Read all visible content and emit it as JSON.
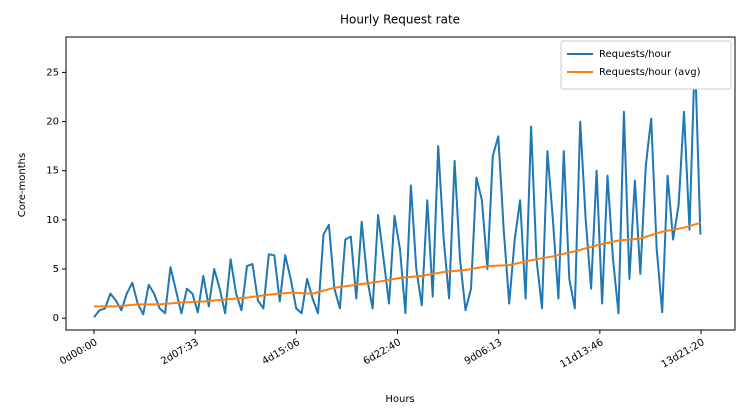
{
  "chart_data": {
    "type": "line",
    "title": "Hourly Request rate",
    "x_label": "Hours",
    "y_label": "Core-months",
    "xlim": [
      -15.4,
      352
    ],
    "ylim": [
      -1.2,
      28.6
    ],
    "xticks": [
      {
        "value": 0,
        "label": "0d00:00"
      },
      {
        "value": 55.56,
        "label": "2d07:33"
      },
      {
        "value": 111.11,
        "label": "4d15:06"
      },
      {
        "value": 166.67,
        "label": "6d22:40"
      },
      {
        "value": 222.22,
        "label": "9d06:13"
      },
      {
        "value": 277.78,
        "label": "11d13:46"
      },
      {
        "value": 333.33,
        "label": "13d21:20"
      }
    ],
    "yticks": [
      0,
      5,
      10,
      15,
      20,
      25
    ],
    "legend": "upper right",
    "series": [
      {
        "name": "Requests/hour",
        "color": "#1f77b4",
        "x": [
          0,
          3,
          6,
          9,
          12,
          15,
          18,
          21,
          24,
          27,
          30,
          33,
          36,
          39,
          42,
          45,
          48,
          51,
          54,
          57,
          60,
          63,
          66,
          69,
          72,
          75,
          78,
          81,
          84,
          87,
          90,
          93,
          96,
          99,
          102,
          105,
          108,
          111,
          114,
          117,
          120,
          123,
          126,
          129,
          132,
          135,
          138,
          141,
          144,
          147,
          150,
          153,
          156,
          159,
          162,
          165,
          168,
          171,
          174,
          177,
          180,
          183,
          186,
          189,
          192,
          195,
          198,
          201,
          204,
          207,
          210,
          213,
          216,
          219,
          222,
          225,
          228,
          231,
          234,
          237,
          240,
          243,
          246,
          249,
          252,
          255,
          258,
          261,
          264,
          267,
          270,
          273,
          276,
          279,
          282,
          285,
          288,
          291,
          294,
          297,
          300,
          303,
          306,
          309,
          312,
          315,
          318,
          321,
          324,
          327,
          330,
          333
        ],
        "values": [
          0.1,
          0.8,
          1,
          2.5,
          1.8,
          0.8,
          2.5,
          3.6,
          1.5,
          0.4,
          3.4,
          2.5,
          1,
          0.5,
          5.2,
          2.8,
          0.5,
          3,
          2.5,
          0.6,
          4.3,
          1.2,
          5,
          3,
          0.5,
          6,
          2.5,
          0.8,
          5.3,
          5.5,
          1.8,
          1,
          6.5,
          6.4,
          1.7,
          6.4,
          4,
          1,
          0.5,
          4,
          2,
          0.5,
          8.5,
          9.5,
          3,
          1,
          8,
          8.3,
          2,
          9.8,
          4,
          1,
          10.5,
          6,
          1.5,
          10.4,
          7,
          0.5,
          13.5,
          5,
          1.3,
          12,
          2.2,
          17.5,
          8,
          2,
          16,
          6,
          0.8,
          3,
          14.3,
          12,
          5,
          16.5,
          18.5,
          9,
          1.5,
          8,
          12,
          2,
          19.5,
          6,
          1,
          17,
          10,
          2,
          17,
          4,
          1,
          20,
          10,
          3,
          15,
          1.5,
          14.5,
          6,
          0.5,
          21,
          4,
          14,
          4.5,
          15.5,
          20.3,
          7,
          0.6,
          14.5,
          8,
          11.5,
          21,
          9,
          27,
          8.5
        ]
      },
      {
        "name": "Requests/hour (avg)",
        "color": "#ff7f0e",
        "x": [
          0,
          12,
          24,
          36,
          48,
          60,
          72,
          84,
          96,
          108,
          120,
          132,
          144,
          156,
          168,
          180,
          192,
          204,
          216,
          228,
          240,
          252,
          264,
          276,
          288,
          300,
          312,
          324,
          333
        ],
        "values": [
          1.2,
          1.2,
          1.4,
          1.4,
          1.6,
          1.7,
          1.9,
          2.1,
          2.4,
          2.6,
          2.5,
          3.1,
          3.4,
          3.7,
          4.1,
          4.3,
          4.7,
          4.9,
          5.3,
          5.4,
          5.9,
          6.3,
          6.8,
          7.4,
          7.9,
          8.1,
          8.8,
          9.2,
          9.7
        ]
      }
    ]
  }
}
